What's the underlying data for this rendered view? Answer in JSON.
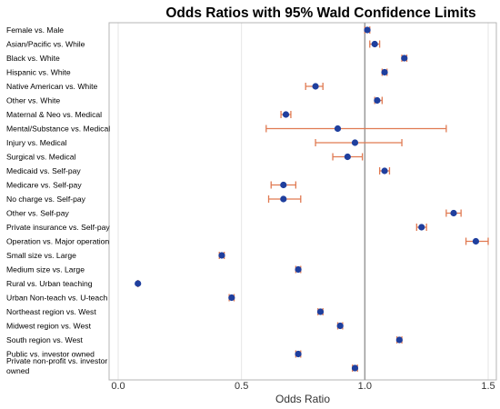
{
  "chart_data": {
    "type": "scatter",
    "title": "Odds Ratios with 95% Wald Confidence Limits",
    "xlabel": "Odds Ratio",
    "xlim": [
      0.0,
      1.5
    ],
    "xticks": [
      "0.0",
      "0.5",
      "1.0",
      "1.5"
    ],
    "reference_line": 1.0,
    "grid": true,
    "colors": {
      "point": "#1f3f9e",
      "ci": "#e07a52",
      "reference": "#9a9a9a",
      "grid": "#e6e6e6",
      "frame": "#b5b5b5"
    },
    "categories": [
      "Female vs. Male",
      "Asian/Pacific vs. While",
      "Black vs. White",
      "Hispanic vs. White",
      "Native American vs. White",
      "Other vs. White",
      "Maternal & Neo vs. Medical",
      "Mental/Substance vs. Medical",
      "Injury vs. Medical",
      "Surgical vs. Medical",
      "Medicaid vs. Self-pay",
      "Medicare vs. Self-pay",
      "No charge vs. Self-pay",
      "Other vs. Self-pay",
      "Private insurance vs. Self-pay",
      "Operation vs. Major operation",
      "Small size vs. Large",
      "Medium size vs. Large",
      "Rural  vs. Urban teaching",
      "Urban Non-teach vs. U-teach",
      "Northeast region vs. West",
      "Midwest region vs. West",
      "South region vs. West",
      "Public vs. investor owned",
      "Private non-profit  vs. investor owned"
    ],
    "estimates": [
      1.01,
      1.04,
      1.16,
      1.08,
      0.8,
      1.05,
      0.68,
      0.89,
      0.96,
      0.93,
      1.08,
      0.67,
      0.67,
      1.36,
      1.23,
      1.45,
      0.42,
      0.73,
      0.08,
      0.46,
      0.82,
      0.9,
      1.14,
      0.73,
      0.96
    ],
    "lower": [
      1.0,
      1.02,
      1.15,
      1.07,
      0.76,
      1.04,
      0.66,
      0.6,
      0.8,
      0.87,
      1.06,
      0.62,
      0.61,
      1.33,
      1.21,
      1.41,
      0.41,
      0.72,
      0.08,
      0.45,
      0.81,
      0.89,
      1.13,
      0.72,
      0.95
    ],
    "upper": [
      1.02,
      1.06,
      1.17,
      1.09,
      0.83,
      1.07,
      0.7,
      1.33,
      1.15,
      0.99,
      1.1,
      0.72,
      0.74,
      1.39,
      1.25,
      1.5,
      0.43,
      0.74,
      0.08,
      0.47,
      0.83,
      0.91,
      1.15,
      0.74,
      0.97
    ]
  }
}
